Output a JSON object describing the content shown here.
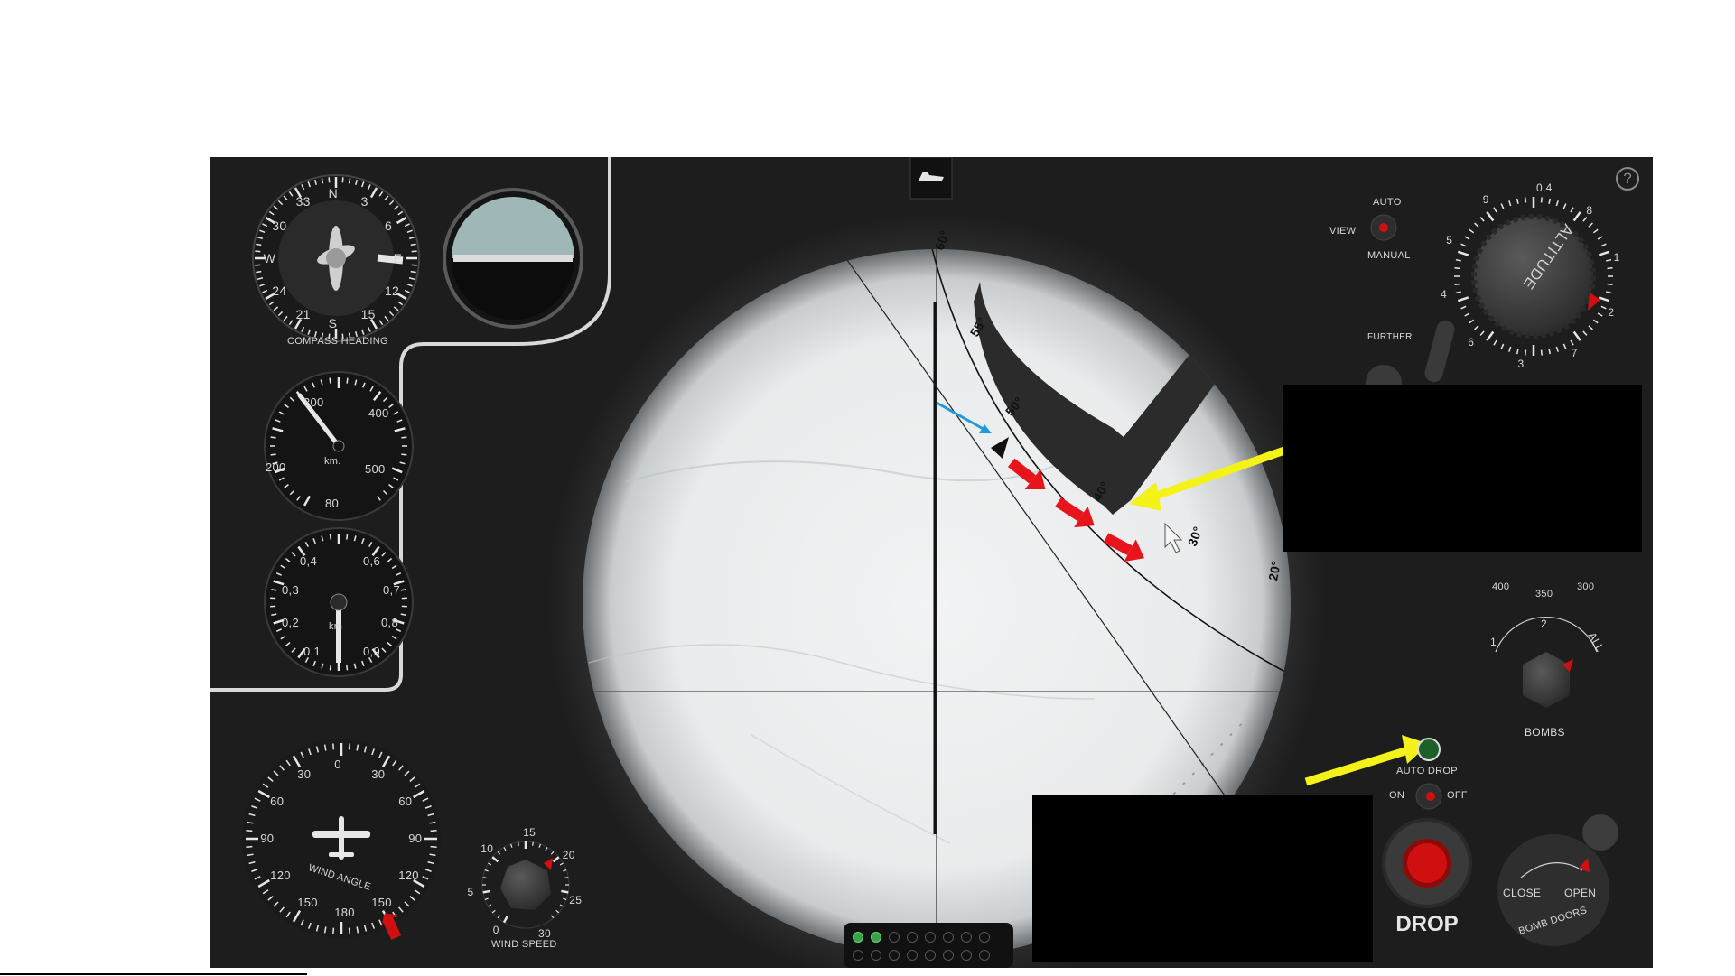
{
  "panel": {
    "help_label": "?",
    "compass": {
      "title": "COMPASS HEADING",
      "cardinals": [
        "N",
        "3",
        "6",
        "E",
        "12",
        "15",
        "S",
        "21",
        "24",
        "W",
        "30",
        "33"
      ]
    },
    "airspeed": {
      "unit": "km.",
      "marks": [
        "300",
        "400",
        "200",
        "500",
        "80"
      ]
    },
    "altimeter": {
      "unit": "km",
      "marks": [
        "0,4",
        "0,6",
        "0,3",
        "0,7",
        "0,2",
        "0,8",
        "0,1",
        "0,9"
      ]
    },
    "wind_angle": {
      "title": "WIND ANGLE",
      "marks": [
        "0",
        "30",
        "60",
        "90",
        "120",
        "150",
        "180",
        "150",
        "120",
        "90",
        "60",
        "30"
      ]
    },
    "wind_speed": {
      "title": "WIND SPEED",
      "marks": [
        "0",
        "5",
        "10",
        "15",
        "20",
        "25",
        "30"
      ]
    },
    "sight": {
      "angle_marks": [
        "60°",
        "55°",
        "50°",
        "40°",
        "30°",
        "20°"
      ]
    },
    "view": {
      "label": "VIEW",
      "auto": "AUTO",
      "manual": "MANUAL"
    },
    "altitude_knob": {
      "title": "ALTITUDE",
      "marks": [
        "9",
        "0,4",
        "8",
        "1",
        "2",
        "7",
        "3",
        "6",
        "4",
        "5"
      ]
    },
    "further_label": "FURTHER",
    "speed_knob_marks": [
      "400",
      "350",
      "300"
    ],
    "bombs": {
      "title": "BOMBS",
      "marks": [
        "1",
        "2",
        "ALL"
      ]
    },
    "auto_drop": {
      "label": "AUTO DROP",
      "on": "ON",
      "off": "OFF"
    },
    "drop_label": "DROP",
    "bomb_doors": {
      "title": "BOMB DOORS",
      "close": "CLOSE",
      "open": "OPEN"
    },
    "bomb_counter": {
      "total": 16,
      "lit": 2
    }
  },
  "colors": {
    "panel_bg": "#1d1d1e",
    "annotation_red": "#e8141b",
    "annotation_yellow": "#f5f21a",
    "annotation_blue": "#1e9bd7",
    "indicator_red": "#d01010",
    "led_green": "#1f5f2a"
  }
}
